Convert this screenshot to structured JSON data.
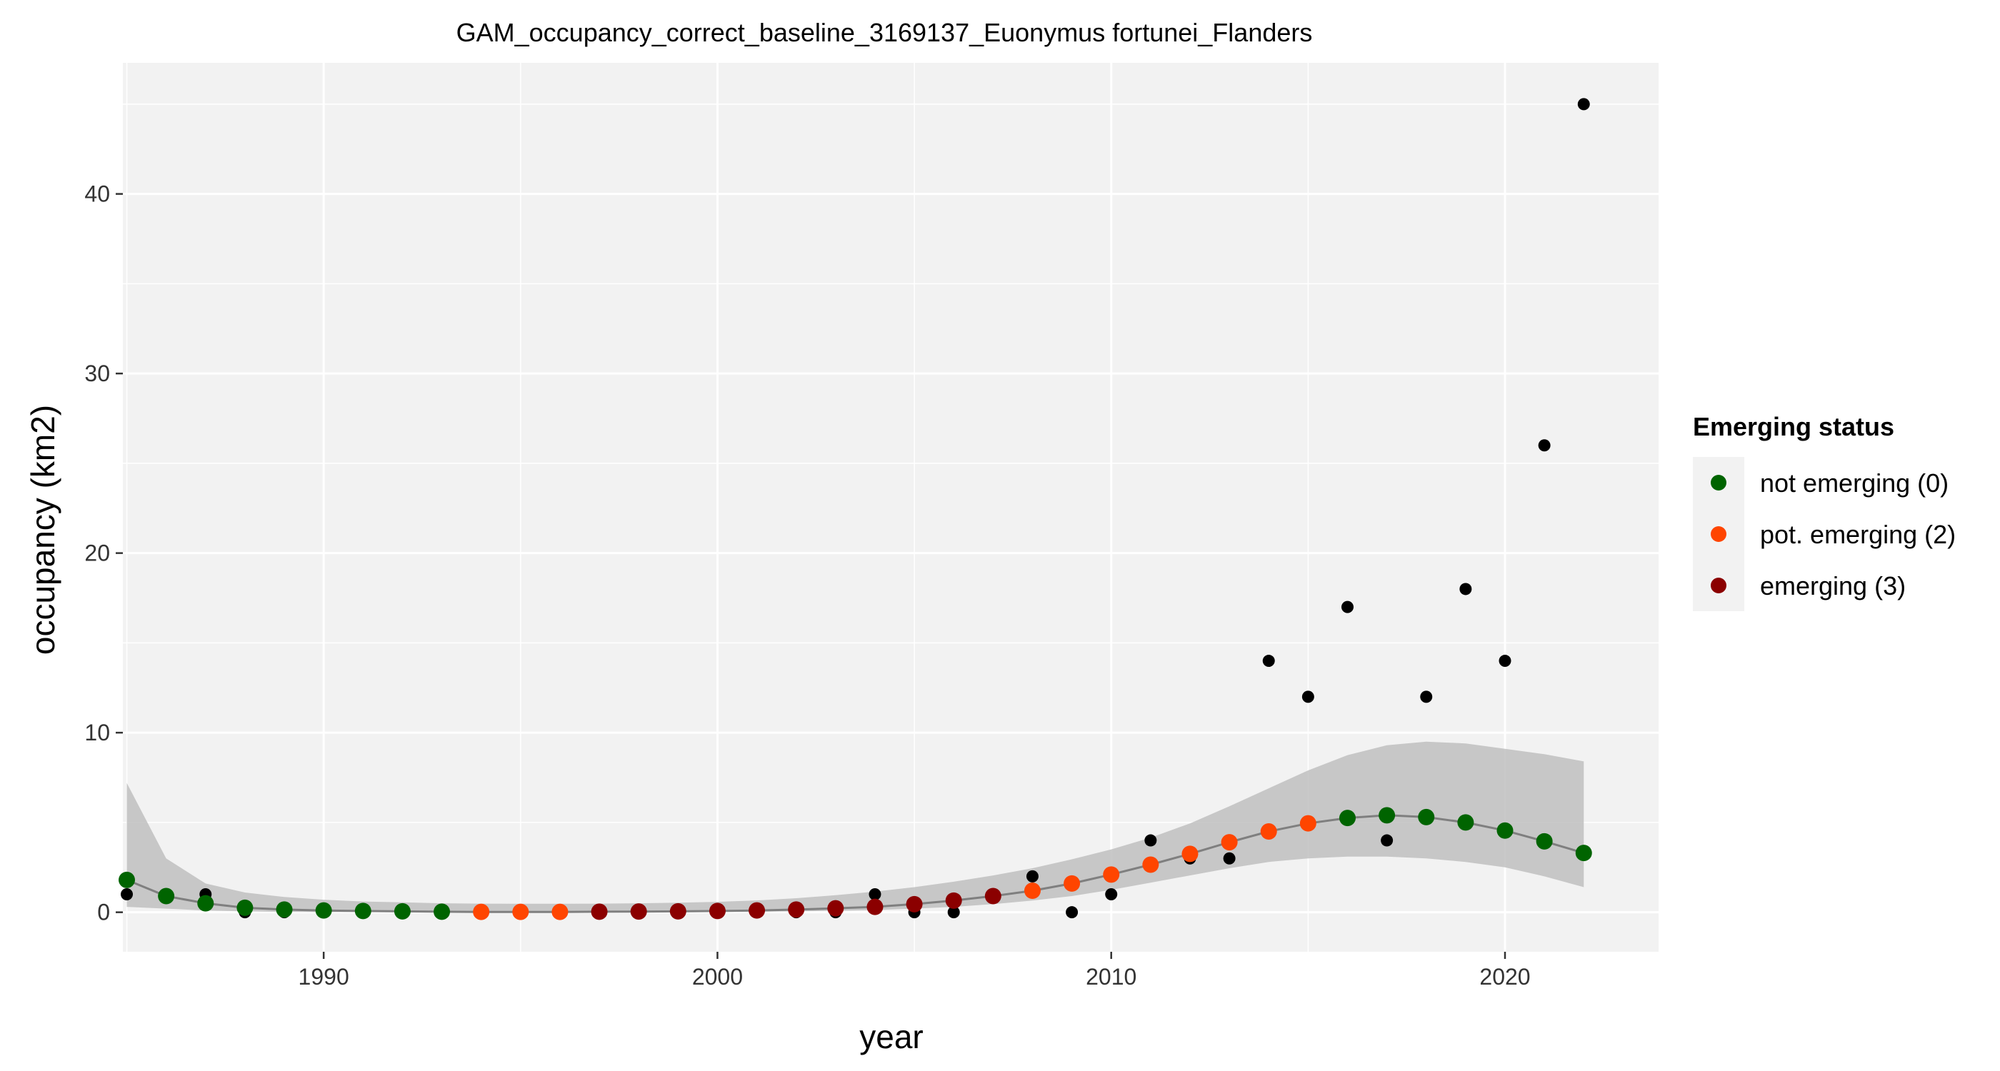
{
  "chart_data": {
    "type": "scatter",
    "title": "GAM_occupancy_correct_baseline_3169137_Euonymus fortunei_Flanders",
    "xlabel": "year",
    "ylabel": "occupancy (km2)",
    "xlim": [
      1984.9,
      2023.9
    ],
    "ylim": [
      -2.2,
      47.3
    ],
    "x_ticks": [
      1990,
      2000,
      2010,
      2020
    ],
    "y_ticks": [
      0,
      10,
      20,
      30,
      40
    ],
    "grid": true,
    "legend": {
      "title": "Emerging status",
      "position": "right",
      "entries": [
        {
          "key": "0",
          "label": "not emerging (0)",
          "color": "#006400"
        },
        {
          "key": "2",
          "label": "pot. emerging (2)",
          "color": "#FF4500"
        },
        {
          "key": "3",
          "label": "emerging (3)",
          "color": "#8B0000"
        }
      ]
    },
    "observed": {
      "color": "#000000",
      "points": [
        [
          1985,
          1
        ],
        [
          1987,
          1
        ],
        [
          1988,
          0
        ],
        [
          1989,
          0
        ],
        [
          2002,
          0
        ],
        [
          2003,
          0
        ],
        [
          2004,
          1
        ],
        [
          2005,
          0
        ],
        [
          2006,
          0
        ],
        [
          2008,
          2
        ],
        [
          2009,
          0
        ],
        [
          2010,
          1
        ],
        [
          2011,
          4
        ],
        [
          2012,
          3
        ],
        [
          2013,
          3
        ],
        [
          2014,
          14
        ],
        [
          2015,
          12
        ],
        [
          2016,
          17
        ],
        [
          2017,
          4
        ],
        [
          2018,
          12
        ],
        [
          2019,
          18
        ],
        [
          2020,
          14
        ],
        [
          2021,
          26
        ],
        [
          2022,
          45
        ]
      ]
    },
    "fit": {
      "line_color": "#7f7f7f",
      "ribbon_color": "#bfbfbf",
      "years": [
        1985,
        1986,
        1987,
        1988,
        1989,
        1990,
        1991,
        1992,
        1993,
        1994,
        1995,
        1996,
        1997,
        1998,
        1999,
        2000,
        2001,
        2002,
        2003,
        2004,
        2005,
        2006,
        2007,
        2008,
        2009,
        2010,
        2011,
        2012,
        2013,
        2014,
        2015,
        2016,
        2017,
        2018,
        2019,
        2020,
        2021,
        2022
      ],
      "values": [
        1.8,
        0.9,
        0.5,
        0.25,
        0.15,
        0.1,
        0.07,
        0.05,
        0.03,
        0.02,
        0.02,
        0.02,
        0.03,
        0.04,
        0.05,
        0.07,
        0.1,
        0.15,
        0.22,
        0.3,
        0.45,
        0.65,
        0.9,
        1.2,
        1.6,
        2.1,
        2.65,
        3.25,
        3.9,
        4.5,
        4.95,
        5.25,
        5.4,
        5.3,
        5.0,
        4.55,
        3.95,
        3.3
      ],
      "lower": [
        0.3,
        0.2,
        0.1,
        0.05,
        0.02,
        0.01,
        0.01,
        0.01,
        0.01,
        0.01,
        0.01,
        0.01,
        0.01,
        0.01,
        0.01,
        0.02,
        0.03,
        0.05,
        0.08,
        0.12,
        0.2,
        0.3,
        0.45,
        0.65,
        0.9,
        1.25,
        1.65,
        2.05,
        2.45,
        2.8,
        3.0,
        3.1,
        3.1,
        3.0,
        2.8,
        2.5,
        2.0,
        1.4
      ],
      "upper": [
        7.2,
        3.0,
        1.6,
        1.1,
        0.85,
        0.7,
        0.6,
        0.55,
        0.5,
        0.48,
        0.47,
        0.47,
        0.48,
        0.5,
        0.53,
        0.58,
        0.66,
        0.78,
        0.95,
        1.15,
        1.4,
        1.7,
        2.05,
        2.45,
        2.95,
        3.5,
        4.15,
        4.95,
        5.9,
        6.9,
        7.9,
        8.75,
        9.3,
        9.5,
        9.4,
        9.1,
        8.8,
        8.4
      ],
      "status": [
        "0",
        "0",
        "0",
        "0",
        "0",
        "0",
        "0",
        "0",
        "0",
        "2",
        "2",
        "2",
        "3",
        "3",
        "3",
        "3",
        "3",
        "3",
        "3",
        "3",
        "3",
        "3",
        "3",
        "2",
        "2",
        "2",
        "2",
        "2",
        "2",
        "2",
        "2",
        "0",
        "0",
        "0",
        "0",
        "0",
        "0",
        "0"
      ]
    }
  }
}
